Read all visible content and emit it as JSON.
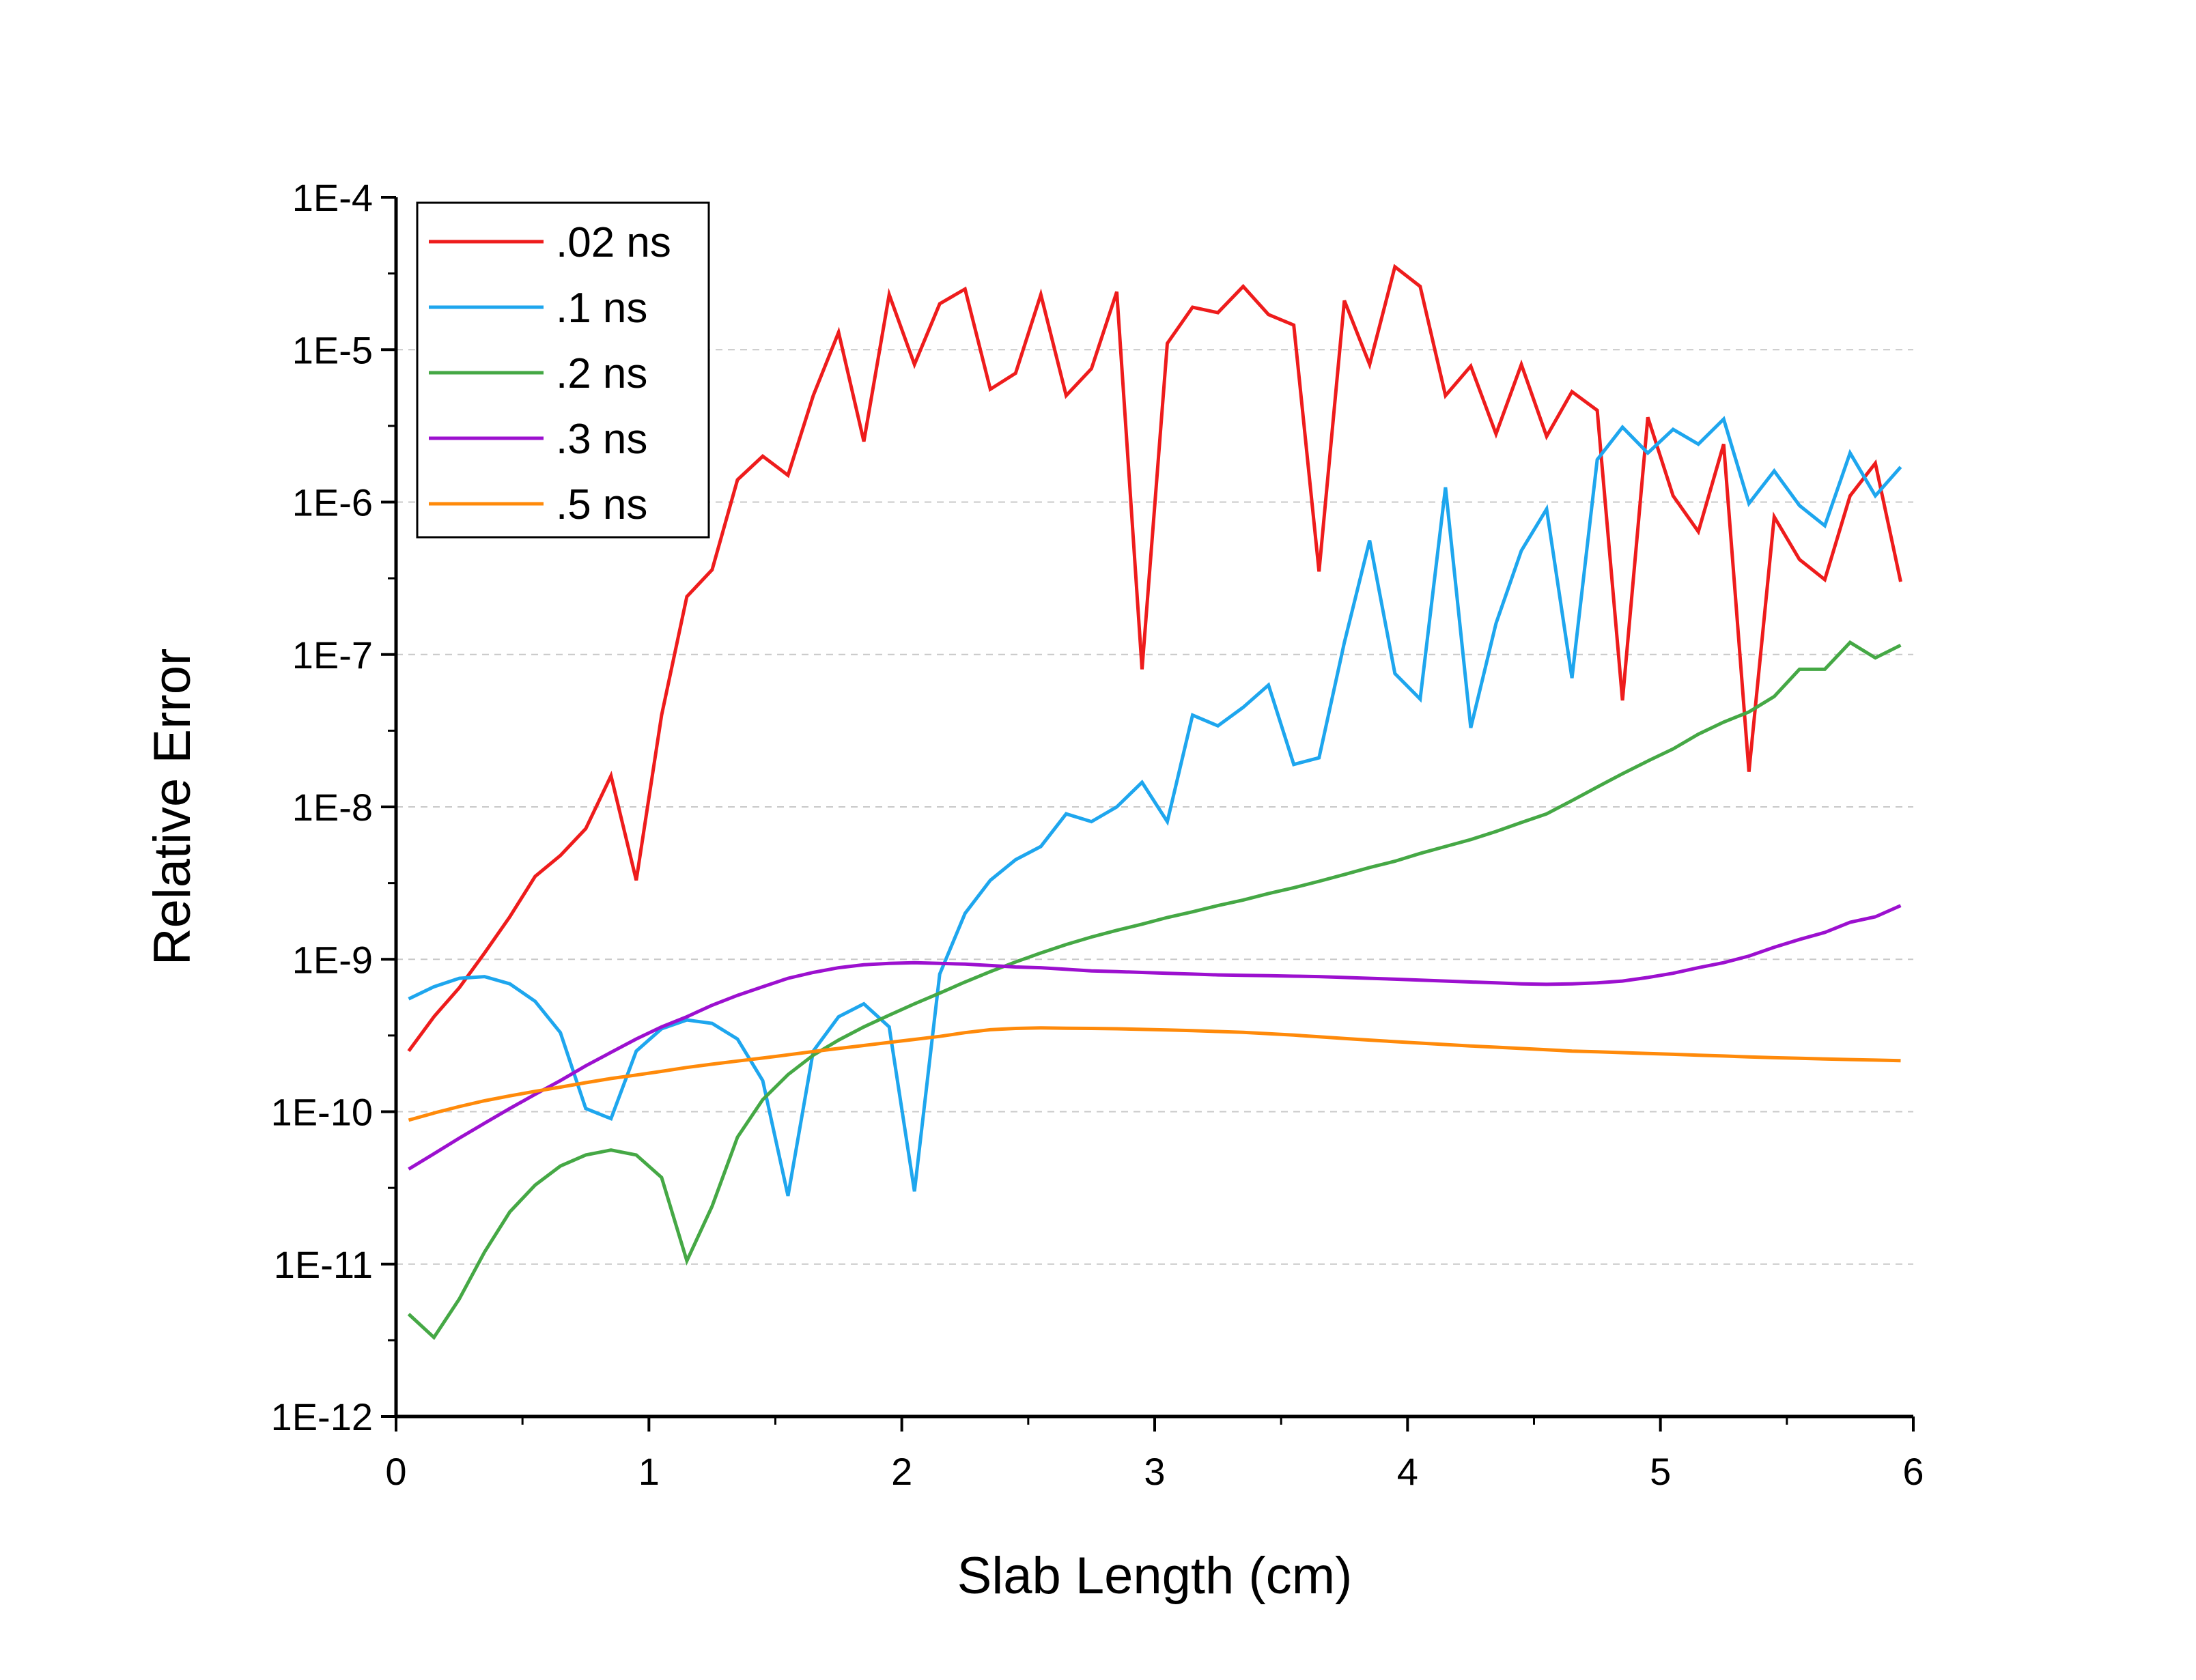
{
  "chart_data": {
    "type": "line",
    "xlabel": "Slab Length (cm)",
    "ylabel": "Relative Error",
    "xlim": [
      0,
      6
    ],
    "ylim": [
      1e-12,
      0.0001
    ],
    "y_scale": "log",
    "x_ticks": [
      "0",
      "1",
      "2",
      "3",
      "4",
      "5",
      "6"
    ],
    "y_ticks": [
      "1E-12",
      "1E-11",
      "1E-10",
      "1E-9",
      "1E-8",
      "1E-7",
      "1E-6",
      "1E-5",
      "1E-4"
    ],
    "grid": "horizontal dashed at major y ticks",
    "legend_position": "top-left",
    "x": [
      0.05,
      0.15,
      0.25,
      0.35,
      0.45,
      0.55,
      0.65,
      0.75,
      0.85,
      0.95,
      1.05,
      1.15,
      1.25,
      1.35,
      1.45,
      1.55,
      1.65,
      1.75,
      1.85,
      1.95,
      2.05,
      2.15,
      2.25,
      2.35,
      2.45,
      2.55,
      2.65,
      2.75,
      2.85,
      2.95,
      3.05,
      3.15,
      3.25,
      3.35,
      3.45,
      3.55,
      3.65,
      3.75,
      3.85,
      3.95,
      4.05,
      4.15,
      4.25,
      4.35,
      4.45,
      4.55,
      4.65,
      4.75,
      4.85,
      4.95,
      5.05,
      5.15,
      5.25,
      5.35,
      5.45,
      5.55,
      5.65,
      5.75,
      5.85,
      5.95
    ],
    "series": [
      {
        "name": ".02 ns",
        "color": "#ee1c1c",
        "values": [
          2.5e-10,
          4.2e-10,
          6.5e-10,
          1.1e-09,
          1.9e-09,
          3.5e-09,
          4.8e-09,
          7.2e-09,
          1.6e-08,
          3.3e-09,
          4e-08,
          2.4e-07,
          3.6e-07,
          1.4e-06,
          2e-06,
          1.5e-06,
          5e-06,
          1.3e-05,
          2.5e-06,
          2.3e-05,
          8e-06,
          2e-05,
          2.5e-05,
          5.5e-06,
          7e-06,
          2.3e-05,
          5e-06,
          7.5e-06,
          2.4e-05,
          8e-08,
          1.1e-05,
          1.9e-05,
          1.75e-05,
          2.6e-05,
          1.7e-05,
          1.45e-05,
          3.5e-07,
          2.1e-05,
          8e-06,
          3.5e-05,
          2.6e-05,
          5e-06,
          7.8e-06,
          2.8e-06,
          8e-06,
          2.7e-06,
          5.3e-06,
          4e-06,
          5e-08,
          3.6e-06,
          1.1e-06,
          6.4e-07,
          2.4e-06,
          1.7e-08,
          8e-07,
          4.2e-07,
          3.1e-07,
          1.1e-06,
          1.8e-06,
          3e-07
        ]
      },
      {
        "name": ".1 ns",
        "color": "#1ea6ee",
        "values": [
          5.5e-10,
          6.6e-10,
          7.5e-10,
          7.7e-10,
          6.9e-10,
          5.3e-10,
          3.3e-10,
          1.05e-10,
          9e-11,
          2.5e-10,
          3.5e-10,
          4e-10,
          3.8e-10,
          3e-10,
          1.6e-10,
          2.8e-11,
          2.5e-10,
          4.2e-10,
          5.1e-10,
          3.6e-10,
          3e-11,
          8e-10,
          2e-09,
          3.3e-09,
          4.5e-09,
          5.5e-09,
          9e-09,
          8e-09,
          1e-08,
          1.45e-08,
          8e-09,
          4e-08,
          3.4e-08,
          4.5e-08,
          6.3e-08,
          1.9e-08,
          2.1e-08,
          1.2e-07,
          5.6e-07,
          7.5e-08,
          5.1e-08,
          1.25e-06,
          3.3e-08,
          1.6e-07,
          4.8e-07,
          9e-07,
          7e-08,
          1.9e-06,
          3.1e-06,
          2.1e-06,
          3e-06,
          2.4e-06,
          3.5e-06,
          9.8e-07,
          1.6e-06,
          9.5e-07,
          7e-07,
          2.1e-06,
          1.1e-06,
          1.7e-06
        ]
      },
      {
        "name": ".2 ns",
        "color": "#45a845",
        "values": [
          4.7e-12,
          3.3e-12,
          5.9e-12,
          1.2e-11,
          2.2e-11,
          3.3e-11,
          4.4e-11,
          5.2e-11,
          5.6e-11,
          5.2e-11,
          3.7e-11,
          1.05e-11,
          2.4e-11,
          6.8e-11,
          1.2e-10,
          1.75e-10,
          2.35e-10,
          2.95e-10,
          3.6e-10,
          4.3e-10,
          5.1e-10,
          6e-10,
          7.1e-10,
          8.3e-10,
          9.6e-10,
          1.1e-09,
          1.25e-09,
          1.4e-09,
          1.55e-09,
          1.7e-09,
          1.88e-09,
          2.05e-09,
          2.25e-09,
          2.45e-09,
          2.7e-09,
          2.95e-09,
          3.25e-09,
          3.6e-09,
          4e-09,
          4.4e-09,
          4.95e-09,
          5.5e-09,
          6.1e-09,
          6.9e-09,
          7.9e-09,
          9e-09,
          1.1e-08,
          1.35e-08,
          1.65e-08,
          2e-08,
          2.4e-08,
          3e-08,
          3.6e-08,
          4.2e-08,
          5.3e-08,
          8e-08,
          8e-08,
          1.2e-07,
          9.5e-08,
          1.15e-07
        ]
      },
      {
        "name": ".3 ns",
        "color": "#9c10cf",
        "values": [
          4.2e-11,
          5.3e-11,
          6.7e-11,
          8.4e-11,
          1.05e-10,
          1.3e-10,
          1.6e-10,
          2e-10,
          2.45e-10,
          3e-10,
          3.6e-10,
          4.2e-10,
          5e-10,
          5.8e-10,
          6.6e-10,
          7.5e-10,
          8.2e-10,
          8.8e-10,
          9.2e-10,
          9.4e-10,
          9.5e-10,
          9.4e-10,
          9.3e-10,
          9.1e-10,
          8.9e-10,
          8.8e-10,
          8.6e-10,
          8.4e-10,
          8.3e-10,
          8.2e-10,
          8.1e-10,
          8e-10,
          7.9e-10,
          7.85e-10,
          7.8e-10,
          7.75e-10,
          7.7e-10,
          7.6e-10,
          7.5e-10,
          7.4e-10,
          7.3e-10,
          7.2e-10,
          7.1e-10,
          7e-10,
          6.9e-10,
          6.85e-10,
          6.9e-10,
          7e-10,
          7.2e-10,
          7.6e-10,
          8.1e-10,
          8.8e-10,
          9.5e-10,
          1.05e-09,
          1.2e-09,
          1.35e-09,
          1.5e-09,
          1.75e-09,
          1.9e-09,
          2.25e-09
        ]
      },
      {
        "name": ".5 ns",
        "color": "#ff8a0a",
        "values": [
          8.8e-11,
          9.8e-11,
          1.08e-10,
          1.18e-10,
          1.27e-10,
          1.36e-10,
          1.45e-10,
          1.55e-10,
          1.65e-10,
          1.74e-10,
          1.84e-10,
          1.95e-10,
          2.05e-10,
          2.15e-10,
          2.25e-10,
          2.36e-10,
          2.48e-10,
          2.6e-10,
          2.72e-10,
          2.85e-10,
          2.98e-10,
          3.12e-10,
          3.3e-10,
          3.45e-10,
          3.52e-10,
          3.55e-10,
          3.53e-10,
          3.52e-10,
          3.5e-10,
          3.47e-10,
          3.44e-10,
          3.4e-10,
          3.36e-10,
          3.32e-10,
          3.25e-10,
          3.18e-10,
          3.1e-10,
          3.02e-10,
          2.95e-10,
          2.88e-10,
          2.82e-10,
          2.76e-10,
          2.7e-10,
          2.65e-10,
          2.6e-10,
          2.55e-10,
          2.5e-10,
          2.47e-10,
          2.44e-10,
          2.41e-10,
          2.38e-10,
          2.35e-10,
          2.32e-10,
          2.29e-10,
          2.26e-10,
          2.24e-10,
          2.22e-10,
          2.2e-10,
          2.18e-10,
          2.16e-10
        ]
      }
    ]
  }
}
